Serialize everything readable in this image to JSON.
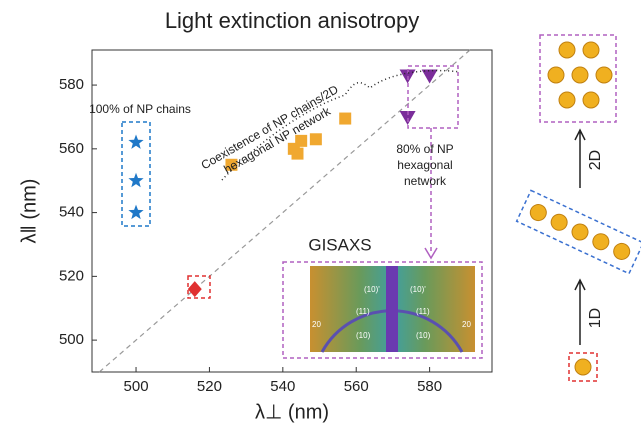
{
  "chart_data": {
    "type": "scatter",
    "title": "Light extinction anisotropy",
    "x_label": "λ⊥ (nm)",
    "y_label": "λ‖ (nm)",
    "xlim": [
      488,
      597
    ],
    "ylim": [
      490,
      591
    ],
    "xticks": [
      500,
      520,
      540,
      560,
      580
    ],
    "yticks": [
      500,
      520,
      540,
      560,
      580
    ],
    "series": [
      {
        "color": "#1f78c8",
        "marker": "star",
        "x": [
          500,
          500,
          500
        ],
        "values": [
          562,
          550,
          540
        ]
      },
      {
        "color": "#f0a830",
        "marker": "square",
        "x": [
          526,
          543,
          544,
          545,
          549,
          557
        ],
        "values": [
          555,
          560,
          558.5,
          562.5,
          563,
          569.5
        ]
      },
      {
        "color": "#7b2d9a",
        "marker": "triangle",
        "x": [
          574,
          580,
          574
        ],
        "values": [
          583,
          583,
          570
        ]
      },
      {
        "color": "#e03030",
        "marker": "diamond",
        "x": [
          516
        ],
        "values": [
          516
        ]
      }
    ],
    "annotations": {
      "chains": "100% of NP chains",
      "coexistence": [
        "Coexistence of NP chains/2D",
        "hexagonal NP network"
      ],
      "hexagonal": [
        "80% of NP",
        "hexagonal",
        "network"
      ],
      "gisaxs": "GISAXS"
    },
    "inset_labels": [
      "(10)'",
      "(10)'",
      "(11)",
      "(11)",
      "(10)",
      "(10)",
      "20",
      "20"
    ],
    "diagram": {
      "top": "2D",
      "bottom": "1D"
    }
  }
}
